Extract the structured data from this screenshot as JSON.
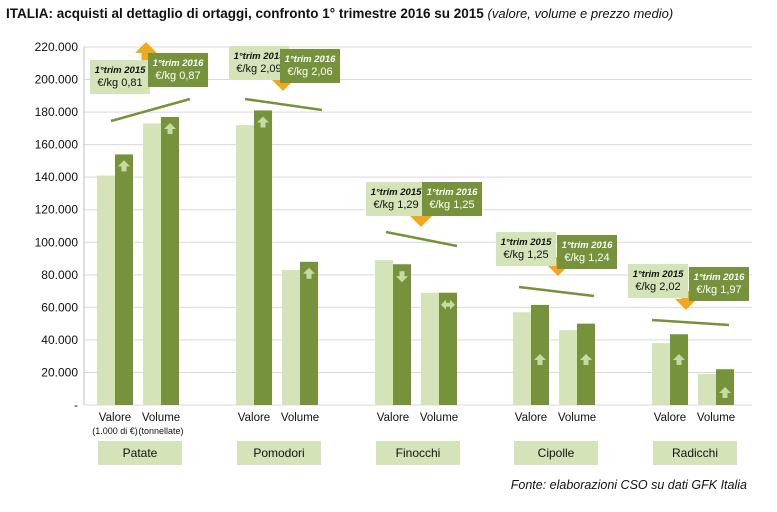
{
  "title": {
    "main": "ITALIA: acquisti al dettaglio di ortaggi, confronto 1° trimestre 2016 su 2015",
    "sub": "(valore, volume e prezzo medio)"
  },
  "source": "Fonte: elaborazioni CSO su dati GFK Italia",
  "colors": {
    "y2015": "#d4e3b8",
    "y2016": "#76933c",
    "arrow": "#f0a81c",
    "trend": "#76933c"
  },
  "chart_data": {
    "type": "bar",
    "ylim": [
      0,
      220000
    ],
    "yticks": [
      "-",
      "20.000",
      "40.000",
      "60.000",
      "80.000",
      "100.000",
      "120.000",
      "140.000",
      "160.000",
      "180.000",
      "200.000",
      "220.000"
    ],
    "series_names": [
      "1°trim 2015",
      "1°trim 2016"
    ],
    "groups": [
      {
        "name": "Patate",
        "bars": [
          {
            "label": "Valore",
            "sublabel": "(1.000 di €)",
            "v2015": 141000,
            "v2016": 154000,
            "change": "up"
          },
          {
            "label": "Volume",
            "sublabel": "(tonnellate)",
            "v2015": 173000,
            "v2016": 177000,
            "change": "up"
          }
        ],
        "price_2015": "€/kg 0,81",
        "price_2016": "€/kg 0,87",
        "price_change": "up"
      },
      {
        "name": "Pomodori",
        "bars": [
          {
            "label": "Valore",
            "sublabel": "",
            "v2015": 172000,
            "v2016": 181000,
            "change": "up"
          },
          {
            "label": "Volume",
            "sublabel": "",
            "v2015": 83000,
            "v2016": 88000,
            "change": "up"
          }
        ],
        "price_2015": "€/kg 2,09",
        "price_2016": "€/kg 2,06",
        "price_change": "down"
      },
      {
        "name": "Finocchi",
        "bars": [
          {
            "label": "Valore",
            "sublabel": "",
            "v2015": 89000,
            "v2016": 86500,
            "change": "down"
          },
          {
            "label": "Volume",
            "sublabel": "",
            "v2015": 69000,
            "v2016": 69000,
            "change": "flat"
          }
        ],
        "price_2015": "€/kg 1,29",
        "price_2016": "€/kg 1,25",
        "price_change": "down"
      },
      {
        "name": "Cipolle",
        "bars": [
          {
            "label": "Valore",
            "sublabel": "",
            "v2015": 57000,
            "v2016": 61500,
            "change": "up"
          },
          {
            "label": "Volume",
            "sublabel": "",
            "v2015": 46000,
            "v2016": 50000,
            "change": "up"
          }
        ],
        "price_2015": "€/kg 1,25",
        "price_2016": "€/kg 1,24",
        "price_change": "down"
      },
      {
        "name": "Radicchi",
        "bars": [
          {
            "label": "Valore",
            "sublabel": "",
            "v2015": 38000,
            "v2016": 43500,
            "change": "up"
          },
          {
            "label": "Volume",
            "sublabel": "",
            "v2015": 19000,
            "v2016": 22000,
            "change": "up"
          }
        ],
        "price_2015": "€/kg 2,02",
        "price_2016": "€/kg  1,97",
        "price_change": "down"
      }
    ]
  }
}
